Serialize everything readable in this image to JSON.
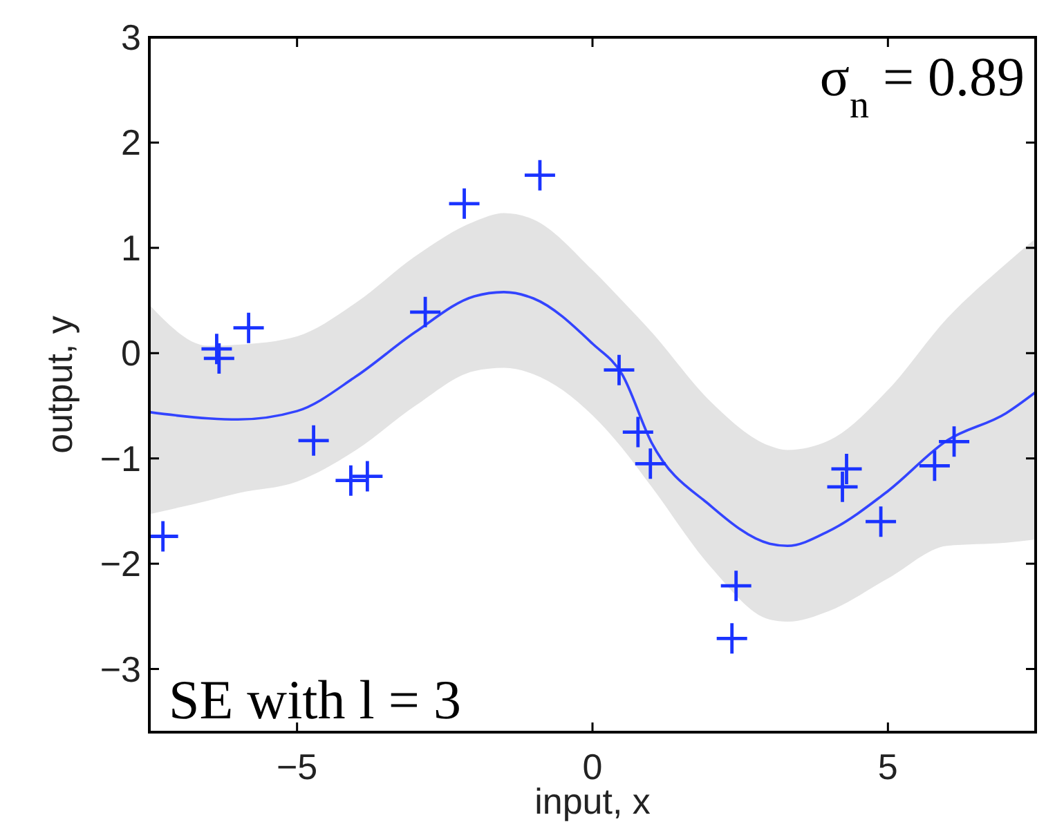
{
  "chart_data": {
    "type": "line",
    "xlabel": "input, x",
    "ylabel": "output, y",
    "xlim": [
      -7.5,
      7.5
    ],
    "ylim": [
      -3.6,
      3
    ],
    "xticks": [
      -5,
      0,
      5
    ],
    "yticks": [
      -3,
      -2,
      -1,
      0,
      1,
      2,
      3
    ],
    "grid": false,
    "annotations": [
      "σ$_{n}$ = 0.89",
      "SE with l = 3"
    ],
    "series": [
      {
        "color": "#3344ff",
        "marker": "none",
        "line_style": "solid",
        "x": [
          -7.5,
          -6.5,
          -6,
          -5,
          -4,
          -3,
          -2,
          -1.5,
          -1,
          0,
          0.5,
          1,
          2,
          3,
          3.3,
          4,
          5,
          6,
          7,
          7.5
        ],
        "values": [
          -0.56,
          -0.62,
          -0.63,
          -0.55,
          -0.22,
          0.2,
          0.54,
          0.58,
          0.52,
          0.09,
          -0.2,
          -0.85,
          -1.45,
          -1.81,
          -1.83,
          -1.69,
          -1.31,
          -0.83,
          -0.57,
          -0.37
        ],
        "lower": [
          -1.53,
          -1.4,
          -1.33,
          -1.22,
          -0.92,
          -0.5,
          -0.17,
          -0.14,
          -0.2,
          -0.59,
          -0.9,
          -1.27,
          -2.03,
          -2.53,
          -2.55,
          -2.45,
          -2.14,
          -1.83,
          -1.8,
          -1.77
        ],
        "upper": [
          0.46,
          0.07,
          0.08,
          0.16,
          0.48,
          0.92,
          1.25,
          1.33,
          1.27,
          0.79,
          0.5,
          0.2,
          -0.46,
          -0.88,
          -0.92,
          -0.83,
          -0.35,
          0.33,
          0.85,
          1.09
        ]
      },
      {
        "type": "scatter",
        "color": "#1a33ff",
        "marker": "cross",
        "x": [
          -7.27,
          -6.36,
          -6.32,
          -5.82,
          -4.72,
          -4.09,
          -3.81,
          -2.83,
          -2.17,
          -0.89,
          0.45,
          0.77,
          0.98,
          2.43,
          2.36,
          4.3,
          4.23,
          4.88,
          5.79,
          6.12
        ],
        "values": [
          -1.74,
          0.04,
          -0.05,
          0.24,
          -0.83,
          -1.21,
          -1.17,
          0.39,
          1.42,
          1.69,
          -0.16,
          -0.75,
          -1.05,
          -2.21,
          -2.71,
          -1.1,
          -1.27,
          -1.6,
          -1.07,
          -0.84
        ]
      }
    ]
  }
}
